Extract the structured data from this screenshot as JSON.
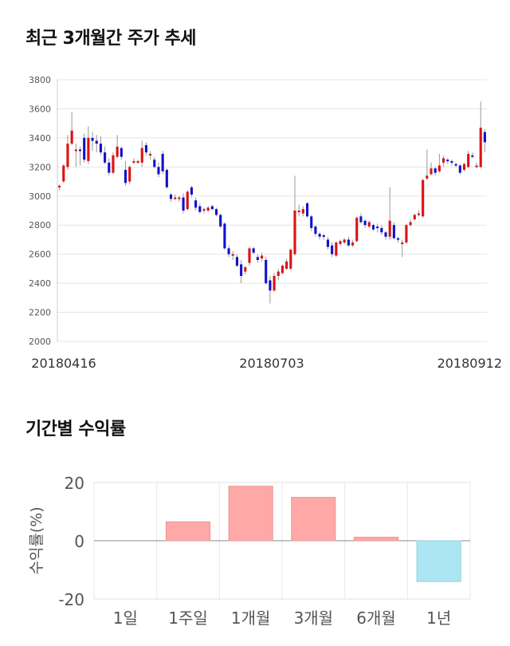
{
  "sections": {
    "price_title": "최근 3개월간 주가 추세",
    "return_title": "기간별 수익률"
  },
  "chart_data": [
    {
      "type": "candlestick",
      "title": "최근 3개월간 주가 추세",
      "ylim": [
        2000,
        3800
      ],
      "y_ticks": [
        "3800",
        "3600",
        "3400",
        "3200",
        "3000",
        "2800",
        "2600",
        "2400",
        "2200",
        "2000"
      ],
      "x_tick_labels": [
        "20180416",
        "20180703",
        "20180912"
      ],
      "grid": true,
      "colors": {
        "up": "#dd1111",
        "down": "#1111cc",
        "wick": "#999999"
      },
      "candles": [
        [
          3060,
          3070,
          3040,
          3080
        ],
        [
          3100,
          3210,
          3090,
          3220
        ],
        [
          3200,
          3360,
          3180,
          3420
        ],
        [
          3360,
          3450,
          3350,
          3580
        ],
        [
          3310,
          3320,
          3200,
          3360
        ],
        [
          3320,
          3310,
          3210,
          3340
        ],
        [
          3400,
          3250,
          3230,
          3430
        ],
        [
          3240,
          3400,
          3220,
          3480
        ],
        [
          3400,
          3380,
          3310,
          3440
        ],
        [
          3380,
          3360,
          3300,
          3420
        ],
        [
          3360,
          3300,
          3280,
          3410
        ],
        [
          3300,
          3230,
          3220,
          3340
        ],
        [
          3230,
          3160,
          3140,
          3260
        ],
        [
          3160,
          3280,
          3150,
          3300
        ],
        [
          3270,
          3340,
          3260,
          3420
        ],
        [
          3330,
          3270,
          3250,
          3340
        ],
        [
          3180,
          3090,
          3070,
          3240
        ],
        [
          3100,
          3200,
          3080,
          3210
        ],
        [
          3230,
          3240,
          3220,
          3260
        ],
        [
          3240,
          3240,
          3220,
          3250
        ],
        [
          3230,
          3330,
          3200,
          3380
        ],
        [
          3350,
          3300,
          3280,
          3370
        ],
        [
          3290,
          3290,
          3250,
          3310
        ],
        [
          3250,
          3200,
          3190,
          3270
        ],
        [
          3200,
          3150,
          3130,
          3230
        ],
        [
          3290,
          3170,
          3150,
          3310
        ],
        [
          3180,
          3060,
          3050,
          3190
        ],
        [
          3010,
          2980,
          2960,
          3020
        ],
        [
          2990,
          2990,
          2970,
          3010
        ],
        [
          2980,
          2990,
          2960,
          3000
        ],
        [
          2990,
          2900,
          2880,
          3020
        ],
        [
          2910,
          3030,
          2900,
          3040
        ],
        [
          3060,
          3010,
          2990,
          3070
        ],
        [
          2970,
          2920,
          2900,
          2990
        ],
        [
          2930,
          2890,
          2880,
          2950
        ],
        [
          2900,
          2910,
          2880,
          2920
        ],
        [
          2900,
          2920,
          2890,
          2930
        ],
        [
          2930,
          2910,
          2900,
          2940
        ],
        [
          2910,
          2870,
          2860,
          2920
        ],
        [
          2870,
          2790,
          2780,
          2880
        ],
        [
          2810,
          2640,
          2630,
          2820
        ],
        [
          2640,
          2600,
          2580,
          2660
        ],
        [
          2600,
          2600,
          2560,
          2620
        ],
        [
          2580,
          2520,
          2510,
          2600
        ],
        [
          2530,
          2450,
          2400,
          2560
        ],
        [
          2480,
          2510,
          2460,
          2520
        ],
        [
          2540,
          2640,
          2520,
          2650
        ],
        [
          2640,
          2610,
          2600,
          2650
        ],
        [
          2580,
          2560,
          2540,
          2600
        ],
        [
          2570,
          2590,
          2550,
          2610
        ],
        [
          2560,
          2400,
          2390,
          2580
        ],
        [
          2420,
          2350,
          2260,
          2450
        ],
        [
          2350,
          2450,
          2340,
          2470
        ],
        [
          2450,
          2480,
          2420,
          2500
        ],
        [
          2470,
          2520,
          2460,
          2530
        ],
        [
          2500,
          2550,
          2490,
          2570
        ],
        [
          2500,
          2630,
          2490,
          2640
        ],
        [
          2600,
          2900,
          2590,
          3140
        ],
        [
          2900,
          2900,
          2860,
          2940
        ],
        [
          2880,
          2910,
          2860,
          2930
        ],
        [
          2950,
          2860,
          2850,
          2960
        ],
        [
          2860,
          2780,
          2760,
          2870
        ],
        [
          2790,
          2740,
          2720,
          2800
        ],
        [
          2740,
          2720,
          2700,
          2750
        ],
        [
          2730,
          2720,
          2700,
          2740
        ],
        [
          2700,
          2650,
          2630,
          2720
        ],
        [
          2660,
          2600,
          2580,
          2680
        ],
        [
          2590,
          2680,
          2580,
          2690
        ],
        [
          2670,
          2690,
          2660,
          2700
        ],
        [
          2680,
          2700,
          2670,
          2710
        ],
        [
          2700,
          2660,
          2650,
          2720
        ],
        [
          2660,
          2680,
          2650,
          2700
        ],
        [
          2690,
          2850,
          2680,
          2860
        ],
        [
          2860,
          2820,
          2810,
          2880
        ],
        [
          2830,
          2800,
          2780,
          2840
        ],
        [
          2790,
          2820,
          2780,
          2830
        ],
        [
          2800,
          2770,
          2760,
          2810
        ],
        [
          2790,
          2780,
          2750,
          2810
        ],
        [
          2780,
          2750,
          2730,
          2800
        ],
        [
          2750,
          2720,
          2700,
          2760
        ],
        [
          2720,
          2830,
          2700,
          3060
        ],
        [
          2800,
          2710,
          2700,
          2820
        ],
        [
          2710,
          2700,
          2680,
          2720
        ],
        [
          2680,
          2680,
          2580,
          2700
        ],
        [
          2680,
          2800,
          2670,
          2810
        ],
        [
          2800,
          2820,
          2790,
          2840
        ],
        [
          2840,
          2870,
          2830,
          2880
        ],
        [
          2870,
          2880,
          2860,
          2900
        ],
        [
          2860,
          3110,
          2850,
          3120
        ],
        [
          3120,
          3140,
          3110,
          3320
        ],
        [
          3150,
          3190,
          3140,
          3230
        ],
        [
          3190,
          3160,
          3140,
          3200
        ],
        [
          3170,
          3210,
          3160,
          3290
        ],
        [
          3230,
          3260,
          3200,
          3280
        ],
        [
          3250,
          3240,
          3220,
          3260
        ],
        [
          3240,
          3230,
          3210,
          3250
        ],
        [
          3220,
          3210,
          3200,
          3230
        ],
        [
          3210,
          3160,
          3150,
          3220
        ],
        [
          3180,
          3220,
          3170,
          3230
        ],
        [
          3200,
          3290,
          3190,
          3310
        ],
        [
          3280,
          3270,
          3260,
          3300
        ],
        [
          3210,
          3210,
          3190,
          3230
        ],
        [
          3200,
          3470,
          3190,
          3650
        ],
        [
          3440,
          3370,
          3300,
          3460
        ]
      ]
    },
    {
      "type": "bar",
      "title": "기간별 수익률",
      "ylabel": "수익률(%)",
      "ylim": [
        -20,
        20
      ],
      "y_ticks": [
        "20",
        "0",
        "-20"
      ],
      "categories": [
        "1일",
        "1주일",
        "1개월",
        "3개월",
        "6개월",
        "1년"
      ],
      "values": [
        0.0,
        6.5,
        18.7,
        14.9,
        1.2,
        -14.0
      ],
      "colors": {
        "positive": "#ffa8a8",
        "positive_edge": "#e89393",
        "negative": "#ace6f2",
        "negative_edge": "#8fd0de"
      }
    }
  ]
}
